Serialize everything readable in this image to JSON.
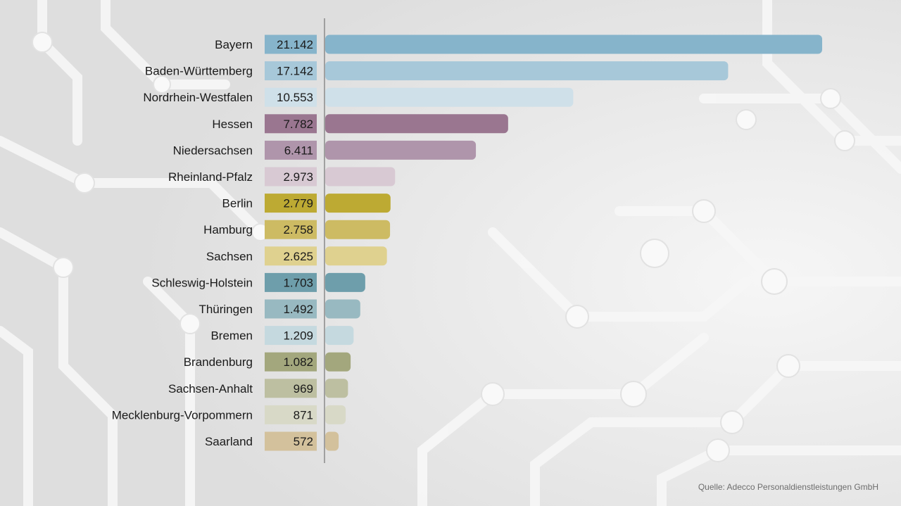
{
  "source": "Quelle: Adecco Personaldienstleistungen GmbH",
  "chart_data": {
    "type": "bar",
    "orientation": "horizontal",
    "categories": [
      "Bayern",
      "Baden-Württemberg",
      "Nordrhein-Westfalen",
      "Hessen",
      "Niedersachsen",
      "Rheinland-Pfalz",
      "Berlin",
      "Hamburg",
      "Sachsen",
      "Schleswig-Holstein",
      "Thüringen",
      "Bremen",
      "Brandenburg",
      "Sachsen-Anhalt",
      "Mecklenburg-Vorpommern",
      "Saarland"
    ],
    "values": [
      21142,
      17142,
      10553,
      7782,
      6411,
      2973,
      2779,
      2758,
      2625,
      1703,
      1492,
      1209,
      1082,
      969,
      871,
      572
    ],
    "value_labels": [
      "21.142",
      "17.142",
      "10.553",
      "7.782",
      "6.411",
      "2.973",
      "2.779",
      "2.758",
      "2.625",
      "1.703",
      "1.492",
      "1.209",
      "1.082",
      "969",
      "871",
      "572"
    ],
    "colors": [
      "#86b4cb",
      "#a7c8d9",
      "#cfe0e9",
      "#9a7690",
      "#af95ab",
      "#d8c9d3",
      "#bdaa33",
      "#cdbb63",
      "#dfd18f",
      "#6e9eab",
      "#98b9c1",
      "#c5d9df",
      "#a3a77d",
      "#bdbfa1",
      "#d8d9c7",
      "#d3c19c"
    ],
    "xlim": [
      0,
      21142
    ],
    "grid": false,
    "title": "",
    "xlabel": "",
    "ylabel": ""
  }
}
